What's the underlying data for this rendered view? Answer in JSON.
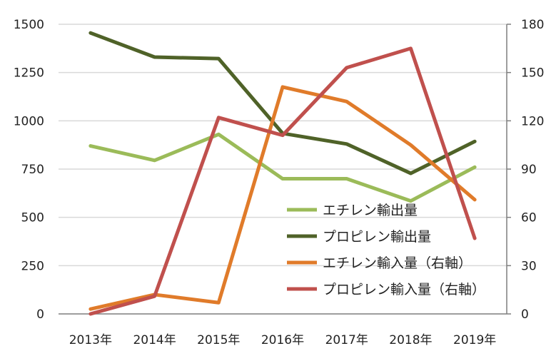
{
  "chart_data": {
    "type": "line",
    "categories": [
      "2013年",
      "2014年",
      "2015年",
      "2016年",
      "2017年",
      "2018年",
      "2019年"
    ],
    "y_left": {
      "min": 0,
      "max": 1500,
      "ticks": [
        "0",
        "250",
        "500",
        "750",
        "1000",
        "1250",
        "1500"
      ]
    },
    "y_right": {
      "min": 0,
      "max": 180,
      "ticks": [
        "0",
        "30",
        "60",
        "90",
        "120",
        "150",
        "180"
      ]
    },
    "grid": true,
    "legend_position": "bottom-right, inside plot",
    "series": [
      {
        "name": "エチレン輸出量",
        "axis": "left",
        "color": "#9bbb59",
        "values": [
          870,
          795,
          930,
          700,
          700,
          585,
          760
        ]
      },
      {
        "name": "プロピレン輸出量",
        "axis": "left",
        "color": "#4f6228",
        "values": [
          1455,
          1330,
          1322,
          935,
          880,
          728,
          893
        ]
      },
      {
        "name": "エチレン輸入量（右軸）",
        "axis": "right",
        "color": "#e07b2a",
        "values": [
          3,
          12,
          7,
          141,
          132,
          105,
          71
        ]
      },
      {
        "name": "プロピレン輸入量（右軸）",
        "axis": "right",
        "color": "#c0504d",
        "values": [
          0,
          11,
          122,
          111,
          153,
          165,
          47
        ]
      }
    ]
  }
}
